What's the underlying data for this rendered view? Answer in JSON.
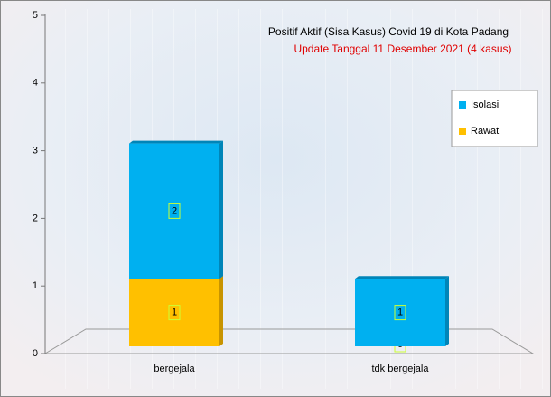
{
  "chart_data": {
    "type": "stacked_bar",
    "title": "Positif Aktif  (Sisa Kasus) Covid 19 di Kota Padang",
    "subtitle": "Update Tanggal  11 Desember 2021 (4 kasus)",
    "categories": [
      "bergejala",
      "tdk bergejala"
    ],
    "series": [
      {
        "name": "Rawat",
        "color": "#ffc000",
        "values": [
          1,
          0
        ]
      },
      {
        "name": "Isolasi",
        "color": "#00b0f0",
        "values": [
          2,
          1
        ]
      }
    ],
    "ylim": [
      0,
      5
    ],
    "yticks": [
      0,
      1,
      2,
      3,
      4,
      5
    ],
    "grid": true,
    "legend": "right"
  }
}
